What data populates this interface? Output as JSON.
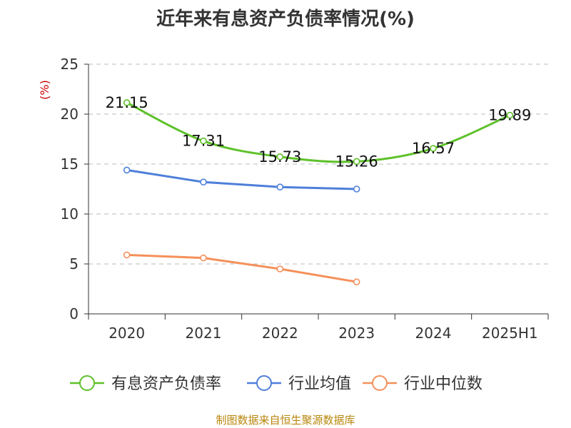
{
  "title": "近年来有息资产负债率情况(%)",
  "source": "制图数据来自恒生聚源数据库",
  "colors": {
    "series_0": "#5ec12a",
    "series_1": "#4e7fd9",
    "series_2": "#f5905a",
    "grid": "#bbbbbb",
    "axis": "#333333",
    "unit": "#cc0000",
    "tick_text": "#333333"
  },
  "chart_data": {
    "type": "line",
    "title": "近年来有息资产负债率情况(%)",
    "xlabel": "",
    "ylabel": "(%)",
    "categories": [
      "2020",
      "2021",
      "2022",
      "2023",
      "2024",
      "2025H1"
    ],
    "ylim": [
      0,
      25
    ],
    "yticks": [
      0,
      5,
      10,
      15,
      20,
      25
    ],
    "grid": true,
    "legend_position": "bottom",
    "series": [
      {
        "name": "有息资产负债率",
        "values": [
          21.15,
          17.31,
          15.73,
          15.26,
          16.57,
          19.89
        ],
        "labels": [
          "21.15",
          "17.31",
          "15.73",
          "15.26",
          "16.57",
          "19.89"
        ],
        "color": "#5ec12a"
      },
      {
        "name": "行业均值",
        "values": [
          14.4,
          13.2,
          12.7,
          12.5,
          null,
          null
        ],
        "color": "#4e7fd9"
      },
      {
        "name": "行业中位数",
        "values": [
          5.9,
          5.6,
          4.5,
          3.2,
          null,
          null
        ],
        "color": "#f5905a"
      }
    ]
  }
}
